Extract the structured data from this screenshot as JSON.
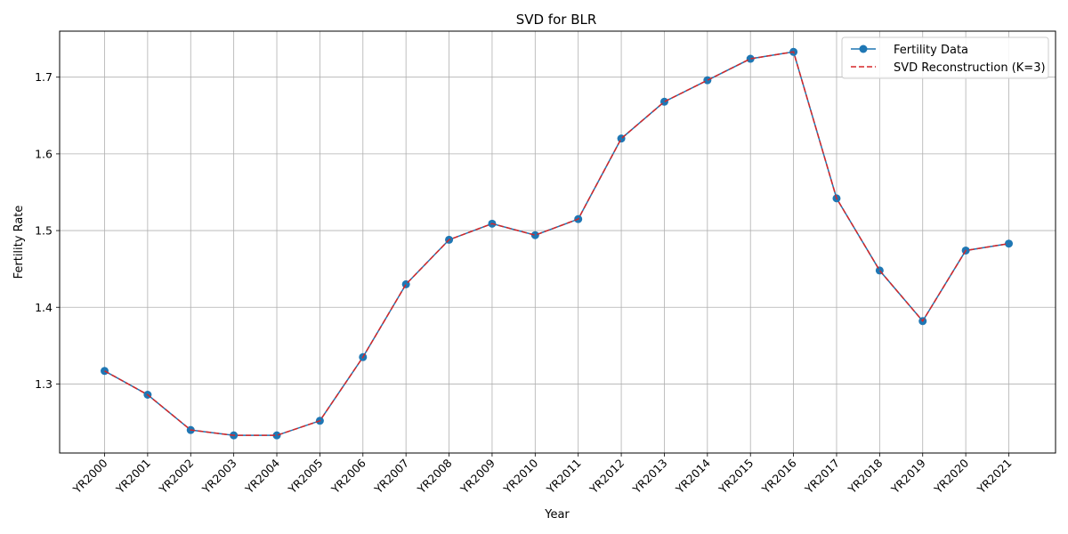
{
  "chart_data": {
    "type": "line",
    "title": "SVD for BLR",
    "xlabel": "Year",
    "ylabel": "Fertility Rate",
    "categories": [
      "YR2000",
      "YR2001",
      "YR2002",
      "YR2003",
      "YR2004",
      "YR2005",
      "YR2006",
      "YR2007",
      "YR2008",
      "YR2009",
      "YR2010",
      "YR2011",
      "YR2012",
      "YR2013",
      "YR2014",
      "YR2015",
      "YR2016",
      "YR2017",
      "YR2018",
      "YR2019",
      "YR2020",
      "YR2021"
    ],
    "ylim": [
      1.21,
      1.76
    ],
    "yticks": [
      1.3,
      1.4,
      1.5,
      1.6,
      1.7
    ],
    "grid": true,
    "legend_position": "top-right",
    "series": [
      {
        "name": "Fertility Data",
        "style": "solid-line-circle-markers",
        "color": "#1f77b4",
        "values": [
          1.317,
          1.286,
          1.24,
          1.233,
          1.233,
          1.252,
          1.335,
          1.43,
          1.488,
          1.509,
          1.494,
          1.515,
          1.62,
          1.668,
          1.696,
          1.724,
          1.733,
          1.542,
          1.448,
          1.382,
          1.474,
          1.483
        ]
      },
      {
        "name": "SVD Reconstruction (K=3)",
        "style": "dashed-line",
        "color": "#d62728",
        "values": [
          1.317,
          1.286,
          1.24,
          1.233,
          1.233,
          1.252,
          1.335,
          1.43,
          1.488,
          1.509,
          1.494,
          1.515,
          1.62,
          1.668,
          1.696,
          1.724,
          1.733,
          1.542,
          1.448,
          1.382,
          1.474,
          1.483
        ]
      }
    ]
  }
}
